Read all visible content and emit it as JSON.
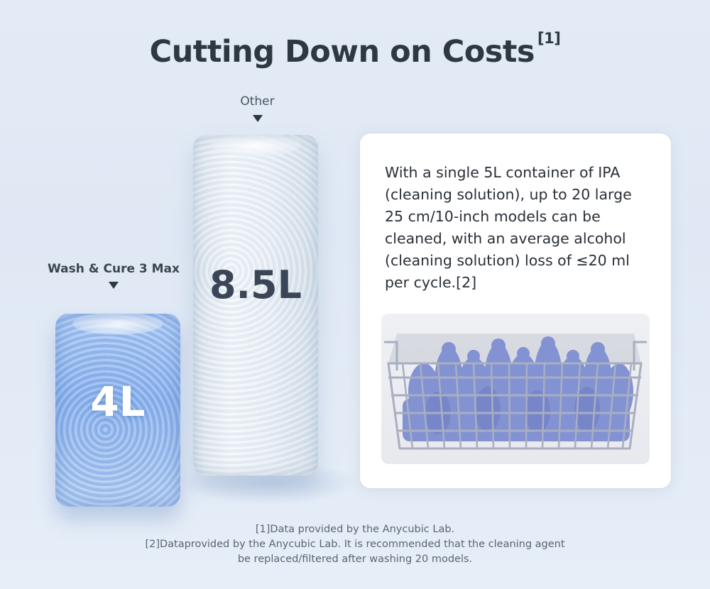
{
  "title": {
    "text": "Cutting Down on Costs",
    "sup": "[1]"
  },
  "columns": {
    "other": {
      "label": "Other",
      "value": "8.5L"
    },
    "wash": {
      "label": "Wash & Cure 3 Max",
      "value": "4L"
    }
  },
  "card": {
    "text": "With a single 5L container of IPA (cleaning solution), up to 20 large 25 cm/10-inch models can be cleaned, with an average alcohol (cleaning solution) loss of ≤20 ml per cycle.[2]",
    "image": "basket-of-printed-models"
  },
  "footnotes": [
    "[1]Data provided by the Anycubic Lab.",
    "[2]Dataprovided by the Anycubic Lab. It is recommended that the cleaning agent",
    "be replaced/filtered after washing 20 models."
  ],
  "colors": {
    "title": "#2e3842",
    "wash_block": "#7aa7ea",
    "other_block": "#e8eef5",
    "models": "#7f8fd0"
  }
}
